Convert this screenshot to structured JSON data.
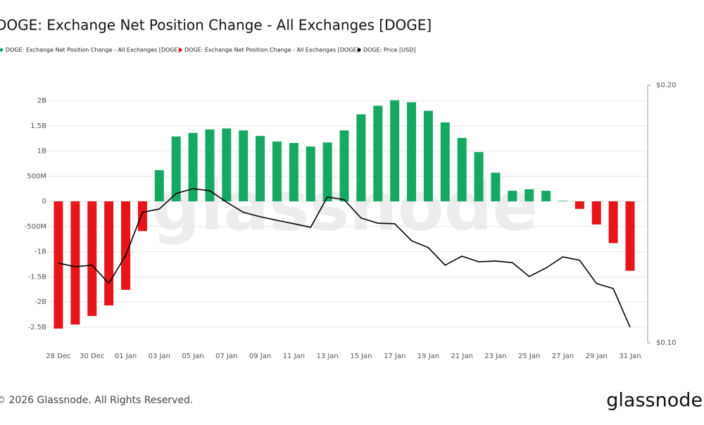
{
  "chart_data": {
    "type": "bar",
    "title": "DOGE: Exchange Net Position Change - All Exchanges [DOGE]",
    "watermark": "glassnode",
    "categories": [
      "28 Dec",
      null,
      "30 Dec",
      null,
      "01 Jan",
      null,
      "03 Jan",
      null,
      "05 Jan",
      null,
      "07 Jan",
      null,
      "09 Jan",
      null,
      "11 Jan",
      null,
      "13 Jan",
      null,
      "15 Jan",
      null,
      "17 Jan",
      null,
      "19 Jan",
      null,
      "21 Jan",
      null,
      "23 Jan",
      null,
      "25 Jan",
      null,
      "27 Jan",
      null,
      "29 Jan",
      null,
      "31 Jan"
    ],
    "series": [
      {
        "name": "DOGE: Exchange Net Position Change - All Exchanges [DOGE]",
        "color": "#16a862",
        "values": [
          null,
          null,
          null,
          null,
          null,
          null,
          620000000,
          1290000000,
          1360000000,
          1430000000,
          1450000000,
          1410000000,
          1300000000,
          1190000000,
          1160000000,
          1090000000,
          1170000000,
          1410000000,
          1730000000,
          1900000000,
          2010000000,
          1970000000,
          1800000000,
          1570000000,
          1260000000,
          980000000,
          570000000,
          210000000,
          240000000,
          210000000,
          10000000,
          null,
          null,
          null,
          null
        ]
      },
      {
        "name": "DOGE: Exchange Net Position Change - All Exchanges [DOGE]",
        "color": "#e8141b",
        "values": [
          -2530000000,
          -2450000000,
          -2280000000,
          -2070000000,
          -1760000000,
          -590000000,
          null,
          null,
          null,
          null,
          null,
          null,
          null,
          null,
          null,
          null,
          null,
          null,
          null,
          null,
          null,
          null,
          null,
          null,
          null,
          null,
          null,
          null,
          null,
          null,
          null,
          -150000000,
          -460000000,
          -830000000,
          -1380000000
        ]
      },
      {
        "name": "DOGE: Price [USD]",
        "color": "#000000",
        "type": "line",
        "axis": "y2",
        "values": [
          0.1309,
          0.1295,
          0.1301,
          0.123,
          0.1339,
          0.1506,
          0.1519,
          0.1579,
          0.1598,
          0.159,
          0.1546,
          0.1506,
          0.1489,
          0.1475,
          0.1462,
          0.1448,
          0.1566,
          0.1555,
          0.1484,
          0.1464,
          0.1462,
          0.1396,
          0.1369,
          0.1301,
          0.1336,
          0.1314,
          0.1317,
          0.1311,
          0.1257,
          0.129,
          0.1333,
          0.132,
          0.123,
          0.121,
          0.106
        ]
      }
    ],
    "ylim": [
      -2810000000,
      2310000000
    ],
    "yticks": [
      {
        "value": 2000000000,
        "label": "2B"
      },
      {
        "value": 1500000000,
        "label": "1.5B"
      },
      {
        "value": 1000000000,
        "label": "1B"
      },
      {
        "value": 500000000,
        "label": "500M"
      },
      0,
      {
        "value": -500000000,
        "label": "-500M"
      },
      {
        "value": -1000000000,
        "label": "-1B"
      },
      {
        "value": -1500000000,
        "label": "-1.5B"
      },
      {
        "value": -2000000000,
        "label": "-2B"
      },
      {
        "value": -2500000000,
        "label": "-2.5B"
      }
    ],
    "y2lim": [
      0.1,
      0.2
    ],
    "y2ticks": [
      {
        "value": 0.2,
        "label": "$0.20"
      },
      {
        "value": 0.1,
        "label": "$0.10"
      }
    ],
    "grid": true
  },
  "footer": {
    "copyright": "© 2026 Glassnode. All Rights Reserved.",
    "logo": "glassnode"
  }
}
